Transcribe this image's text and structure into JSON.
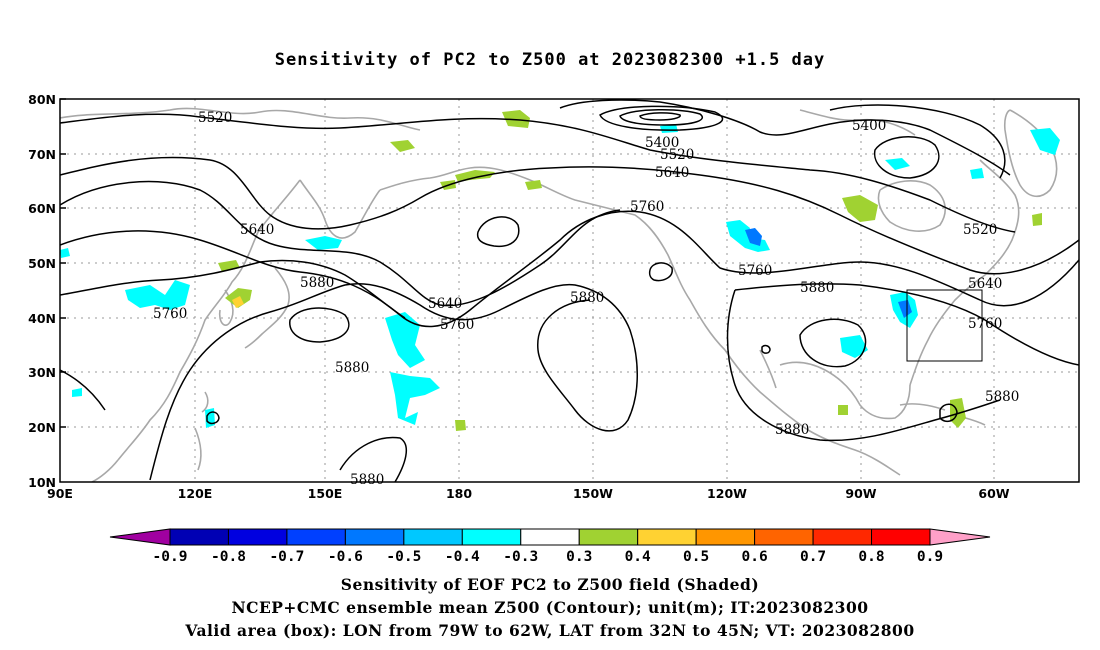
{
  "title": "Sensitivity of PC2 to Z500 at 2023082300 +1.5 day",
  "lat_labels": [
    "80N",
    "70N",
    "60N",
    "50N",
    "40N",
    "30N",
    "20N",
    "10N"
  ],
  "lon_labels": [
    "90E",
    "120E",
    "150E",
    "180",
    "150W",
    "120W",
    "90W",
    "60W"
  ],
  "contour_labels": {
    "c5520": "5520",
    "c5400": "5400",
    "c5640": "5640",
    "c5760": "5760",
    "c5880": "5880"
  },
  "colorbar": {
    "labels": [
      "-0.9",
      "-0.8",
      "-0.7",
      "-0.6",
      "-0.5",
      "-0.4",
      "-0.3",
      "0.3",
      "0.4",
      "0.5",
      "0.6",
      "0.7",
      "0.8",
      "0.9"
    ],
    "colors": [
      "#a000a0",
      "#0000b4",
      "#0000e0",
      "#0040ff",
      "#0078ff",
      "#00c8ff",
      "#00ffff",
      "#ffffff",
      "#a0d232",
      "#ffd232",
      "#ff9600",
      "#ff6400",
      "#ff2800",
      "#ff0000",
      "#ffa0c8"
    ]
  },
  "captions": {
    "line1": "Sensitivity of EOF PC2 to Z500 field (Shaded)",
    "line2": "NCEP+CMC ensemble mean Z500 (Contour); unit(m); IT:2023082300",
    "line3": "Valid area (box): LON from 79W to 62W, LAT from 32N to 45N; VT: 2023082800"
  },
  "valid_box": {
    "lon_min": -79,
    "lon_max": -62,
    "lat_min": 32,
    "lat_max": 45
  }
}
